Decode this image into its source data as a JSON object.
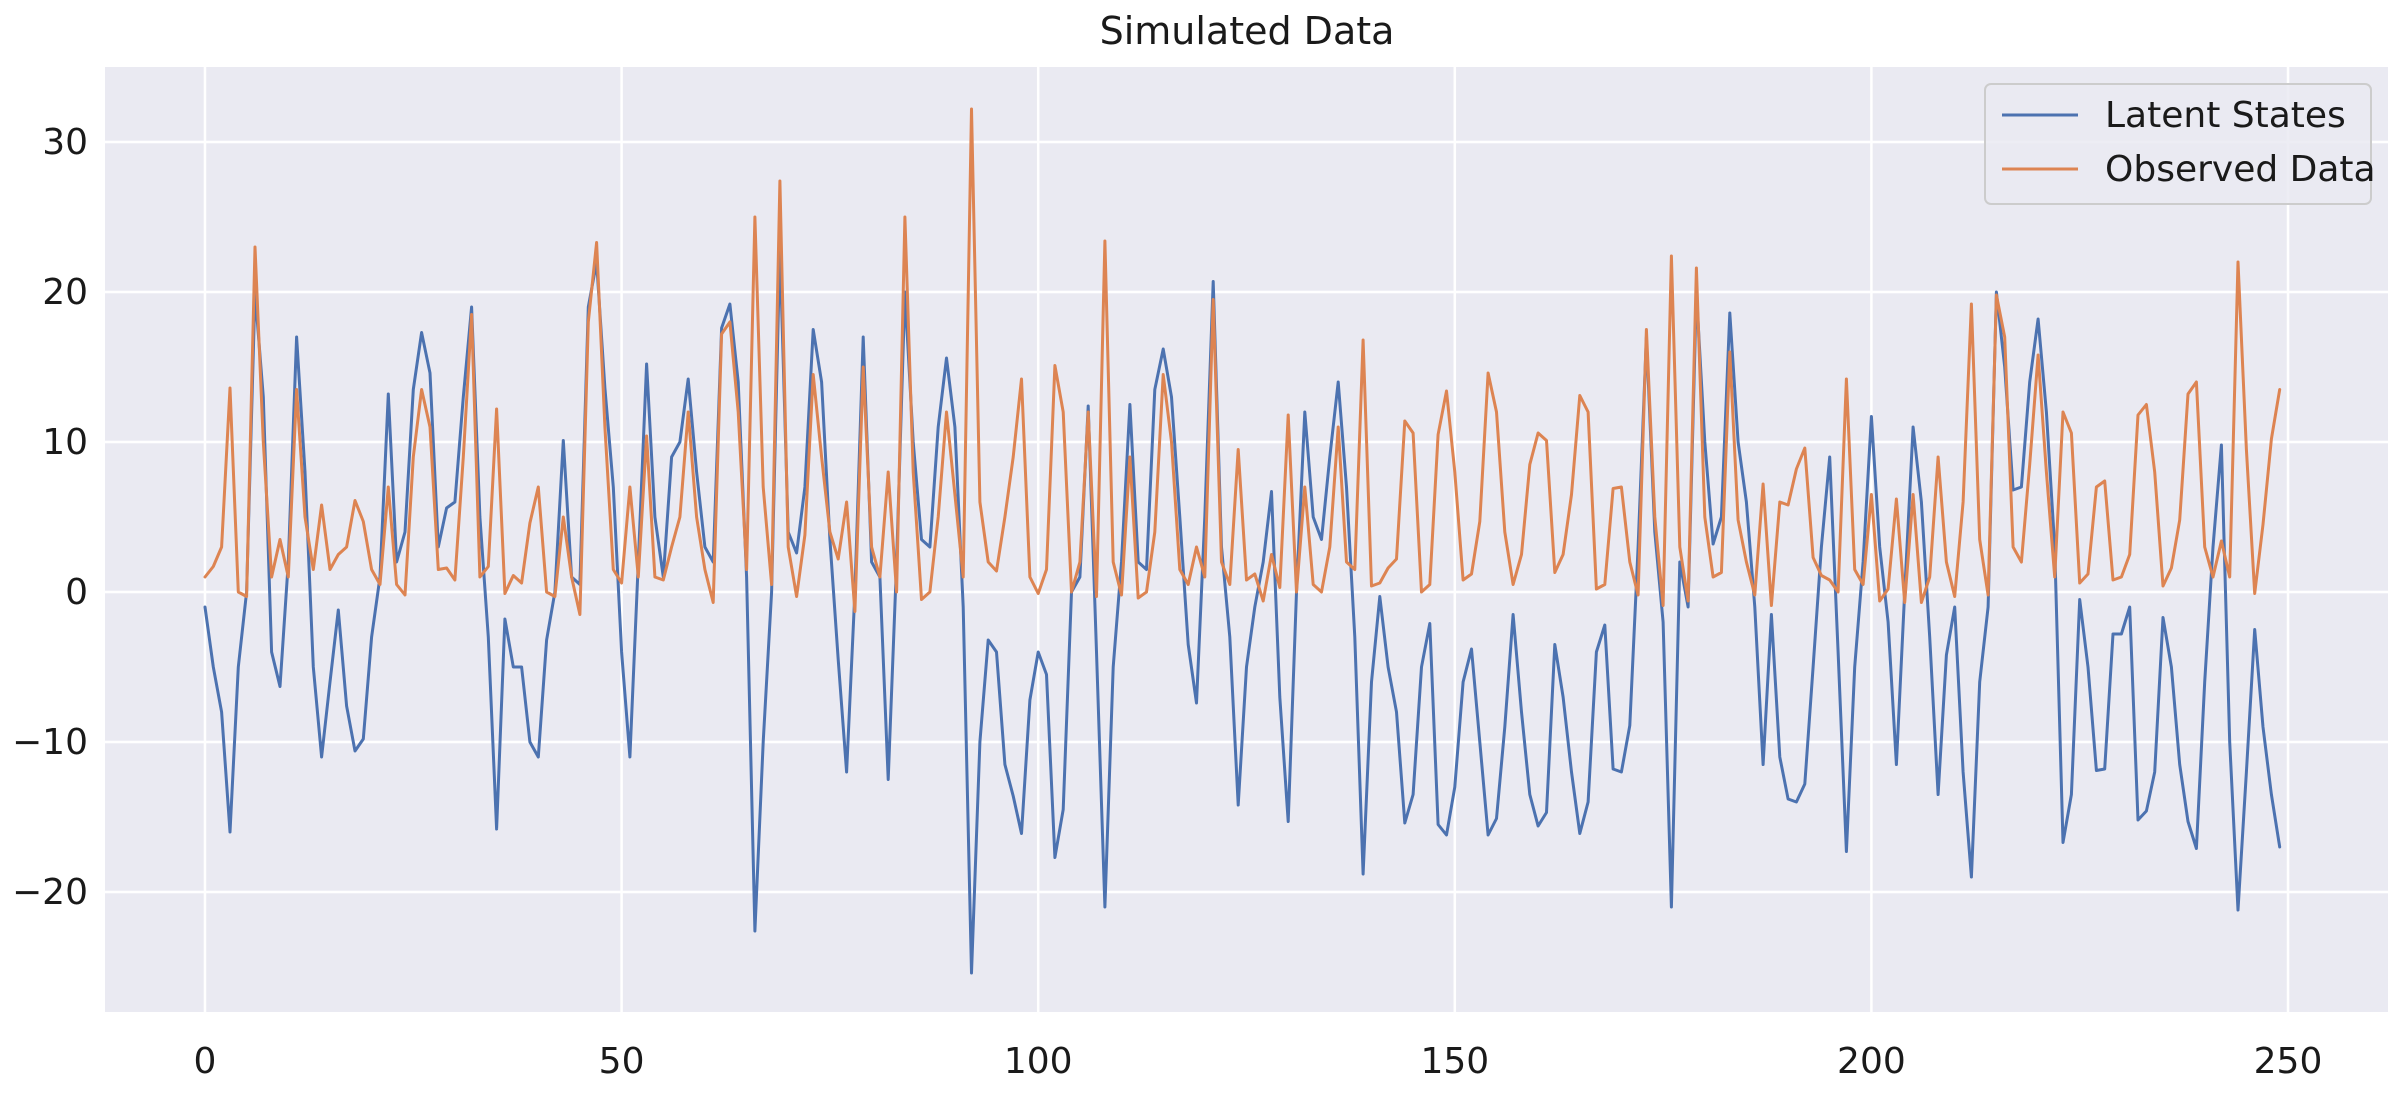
{
  "chart_data": {
    "type": "line",
    "title": "Simulated Data",
    "xlabel": "",
    "ylabel": "",
    "xlim": [
      -12,
      262
    ],
    "ylim": [
      -28,
      35
    ],
    "xticks": [
      0,
      50,
      100,
      150,
      200,
      250
    ],
    "yticks": [
      -20,
      -10,
      0,
      10,
      20,
      30
    ],
    "xtick_labels": [
      "0",
      "50",
      "100",
      "150",
      "200",
      "250"
    ],
    "ytick_labels": [
      "−20",
      "−10",
      "0",
      "10",
      "20",
      "30"
    ],
    "grid": true,
    "legend_position": "top-right",
    "series": [
      {
        "name": "Latent States",
        "color": "#4c72b0",
        "values": [
          -1.0,
          -5.0,
          -8.0,
          -16.0,
          -5.0,
          0.0,
          20.0,
          13.0,
          -4.0,
          -6.3,
          2.0,
          17.0,
          8.0,
          -5.0,
          -11.0,
          -6.0,
          -1.2,
          -7.6,
          -10.6,
          -9.8,
          -3.0,
          1.0,
          13.2,
          2.0,
          4.0,
          13.5,
          17.3,
          14.6,
          3.0,
          5.6,
          6.0,
          13.0,
          19.0,
          5.0,
          -3.0,
          -15.8,
          -1.8,
          -5.0,
          -5.0,
          -10.0,
          -11.0,
          -3.2,
          0.0,
          10.1,
          1.0,
          0.5,
          19.0,
          22.0,
          13.6,
          7.0,
          -4.0,
          -11.0,
          2.0,
          15.2,
          5.0,
          1.0,
          9.0,
          10.0,
          14.2,
          8.0,
          3.0,
          2.0,
          17.6,
          19.2,
          14.0,
          1.0,
          -22.6,
          -10.0,
          0.0,
          23.0,
          4.0,
          2.6,
          7.0,
          17.5,
          14.0,
          3.5,
          -4.5,
          -12.0,
          0.0,
          17.0,
          2.0,
          1.0,
          -12.5,
          2.0,
          20.0,
          10.0,
          3.5,
          3.0,
          11.0,
          15.6,
          11.0,
          -1.0,
          -25.4,
          -10.0,
          -3.2,
          -4.0,
          -11.5,
          -13.6,
          -16.1,
          -7.2,
          -4.0,
          -5.5,
          -17.7,
          -14.5,
          0.0,
          1.0,
          12.4,
          -4.0,
          -21.0,
          -5.0,
          2.0,
          12.5,
          2.0,
          1.5,
          13.5,
          16.2,
          13.0,
          5.0,
          -3.5,
          -7.4,
          5.0,
          20.7,
          3.0,
          -3.0,
          -14.2,
          -5.0,
          -1.0,
          2.0,
          6.7,
          -7.0,
          -15.3,
          0.0,
          12.0,
          5.0,
          3.5,
          9.0,
          14.0,
          7.0,
          -3.0,
          -18.8,
          -6.0,
          -0.3,
          -5.0,
          -8.0,
          -15.4,
          -13.5,
          -5.0,
          -2.1,
          -15.5,
          -16.2,
          -13.0,
          -6.0,
          -3.8,
          -10.0,
          -16.2,
          -15.1,
          -9.0,
          -1.5,
          -8.0,
          -13.5,
          -15.6,
          -14.7,
          -3.5,
          -7.0,
          -12.0,
          -16.1,
          -14.0,
          -4.0,
          -2.2,
          -11.8,
          -12.0,
          -8.9,
          3.0,
          17.0,
          4.0,
          -2.0,
          -21.0,
          2.0,
          -1.0,
          20.0,
          10.0,
          3.2,
          5.0,
          18.6,
          10.0,
          6.0,
          -1.0,
          -11.5,
          -1.5,
          -11.0,
          -13.8,
          -14.0,
          -12.8,
          -5.0,
          3.0,
          9.0,
          -4.0,
          -17.3,
          -5.0,
          2.0,
          11.7,
          3.0,
          -2.0,
          -11.5,
          0.0,
          11.0,
          6.0,
          -3.0,
          -13.5,
          -4.2,
          -1.0,
          -12.0,
          -19.0,
          -6.0,
          -1.0,
          20.0,
          15.0,
          6.8,
          7.0,
          14.0,
          18.2,
          12.0,
          3.0,
          -16.7,
          -13.5,
          -0.5,
          -5.0,
          -11.9,
          -11.8,
          -2.8,
          -2.8,
          -1.0,
          -15.2,
          -14.6,
          -12.0,
          -1.7,
          -5.0,
          -11.5,
          -15.3,
          -17.1,
          -6.0,
          3.0,
          9.8,
          -10.0,
          -21.2,
          -12.0,
          -2.5,
          -9.0,
          -13.5,
          -17.0
        ]
      },
      {
        "name": "Observed Data",
        "color": "#dd8452",
        "values": [
          1.0,
          1.7,
          3.0,
          13.6,
          0.0,
          -0.3,
          23.0,
          10.0,
          1.0,
          3.5,
          1.0,
          13.5,
          5.0,
          1.5,
          5.8,
          1.5,
          2.5,
          3.0,
          6.1,
          4.7,
          1.5,
          0.5,
          7.0,
          0.5,
          -0.2,
          9.0,
          13.5,
          11.0,
          1.5,
          1.6,
          0.8,
          9.0,
          18.5,
          1.0,
          1.7,
          12.2,
          -0.1,
          1.1,
          0.6,
          4.6,
          7.0,
          0.0,
          -0.3,
          5.0,
          1.0,
          -1.5,
          18.0,
          23.3,
          11.0,
          1.5,
          0.6,
          7.0,
          1.0,
          10.4,
          1.0,
          0.8,
          3.0,
          5.0,
          12.0,
          5.0,
          1.5,
          -0.7,
          17.2,
          18.0,
          12.0,
          1.5,
          25.0,
          7.0,
          0.5,
          27.4,
          3.0,
          -0.3,
          3.8,
          14.5,
          9.0,
          4.0,
          2.2,
          6.0,
          -1.3,
          15.0,
          3.0,
          1.0,
          8.0,
          0.0,
          25.0,
          8.0,
          -0.5,
          0.0,
          5.0,
          12.0,
          6.5,
          1.0,
          32.2,
          6.0,
          2.0,
          1.4,
          5.0,
          9.0,
          14.2,
          1.0,
          -0.1,
          1.5,
          15.1,
          12.0,
          0.0,
          2.0,
          12.0,
          -0.3,
          23.4,
          2.0,
          -0.2,
          9.0,
          -0.4,
          0.0,
          4.0,
          14.5,
          10.0,
          1.5,
          0.5,
          3.0,
          1.0,
          19.5,
          2.0,
          0.5,
          9.5,
          0.8,
          1.2,
          -0.6,
          2.5,
          0.3,
          11.8,
          0.0,
          7.0,
          0.5,
          0.0,
          3.0,
          11.0,
          2.0,
          1.5,
          16.8,
          0.4,
          0.6,
          1.6,
          2.2,
          11.4,
          10.6,
          0.0,
          0.5,
          10.5,
          13.4,
          8.0,
          0.8,
          1.2,
          4.7,
          14.6,
          12.0,
          4.0,
          0.5,
          2.5,
          8.5,
          10.6,
          10.1,
          1.3,
          2.5,
          6.5,
          13.1,
          12.0,
          0.2,
          0.5,
          6.9,
          7.0,
          2.0,
          -0.2,
          17.5,
          5.0,
          -0.9,
          22.4,
          3.0,
          -0.6,
          21.6,
          5.0,
          1.0,
          1.3,
          16.0,
          4.8,
          2.0,
          -0.2,
          7.2,
          -0.9,
          6.0,
          5.8,
          8.2,
          9.6,
          2.3,
          1.1,
          0.8,
          0.0,
          14.2,
          1.5,
          0.5,
          6.5,
          -0.6,
          0.2,
          6.2,
          -0.7,
          6.5,
          -0.7,
          1.0,
          9.0,
          2.0,
          -0.3,
          6.0,
          19.2,
          3.5,
          -0.2,
          19.8,
          17.0,
          3.0,
          2.0,
          8.5,
          15.8,
          8.0,
          1.0,
          12.0,
          10.6,
          0.6,
          1.2,
          7.0,
          7.4,
          0.8,
          1.0,
          2.5,
          11.8,
          12.5,
          8.0,
          0.4,
          1.6,
          4.8,
          13.2,
          14.0,
          3.0,
          1.0,
          3.4,
          1.0,
          22.0,
          9.5,
          -0.1,
          4.5,
          10.2,
          13.5
        ]
      }
    ]
  }
}
